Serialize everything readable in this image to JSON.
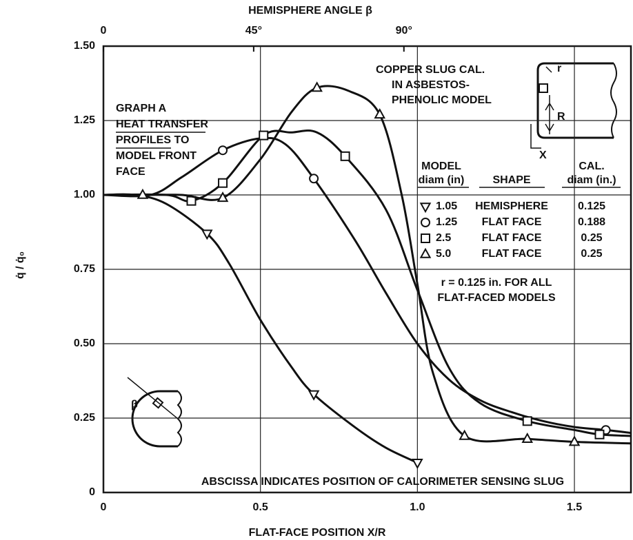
{
  "chart_data": {
    "type": "line",
    "title": "HEMISPHERE ANGLE β",
    "xlabel": "FLAT-FACE POSITION X/R",
    "ylabel": "q̇ / q̇₀",
    "xlim": [
      0,
      1.68
    ],
    "xticks": [
      0,
      0.5,
      {
        "value": 1.0,
        "label": "1.0"
      },
      1.5
    ],
    "ylim": [
      0,
      1.5
    ],
    "yticks": [
      0,
      {
        "value": 0.25,
        "label": "0.25"
      },
      {
        "value": 0.5,
        "label": "0.50"
      },
      {
        "value": 0.75,
        "label": "0.75"
      },
      {
        "value": 1.0,
        "label": "1.00"
      },
      {
        "value": 1.25,
        "label": "1.25"
      },
      {
        "value": 1.5,
        "label": "1.50"
      }
    ],
    "x2lim": [
      0,
      158
    ],
    "x2ticks": [
      0,
      {
        "value": 45,
        "label": "45°"
      },
      {
        "value": 90,
        "label": "90°"
      }
    ],
    "grid": true,
    "color": "#111111",
    "legend_headers": [
      [
        "MODEL",
        "diam (in)"
      ],
      [
        "SHAPE"
      ],
      [
        "CAL.",
        "diam (in.)"
      ]
    ],
    "series": [
      {
        "name": "1.05",
        "shape": "HEMISPHERE",
        "cal_diam": "0.125",
        "marker": "triangle-down",
        "x": [
          0,
          0.1,
          0.2,
          0.33,
          0.4,
          0.5,
          0.6,
          0.67,
          0.8,
          0.9,
          1.0
        ],
        "values": [
          1.0,
          1.0,
          0.97,
          0.87,
          0.77,
          0.58,
          0.42,
          0.33,
          0.22,
          0.15,
          0.1
        ],
        "markers": {
          "x": [
            0.33,
            0.67,
            1.0
          ],
          "values": [
            0.87,
            0.33,
            0.1
          ]
        }
      },
      {
        "name": "1.25",
        "shape": "FLAT FACE",
        "cal_diam": "0.188",
        "marker": "circle",
        "x": [
          0,
          0.15,
          0.25,
          0.38,
          0.5,
          0.58,
          0.67,
          0.8,
          0.9,
          1.0,
          1.1,
          1.2,
          1.3,
          1.4,
          1.5,
          1.6,
          1.68
        ],
        "values": [
          1.0,
          1.0,
          1.06,
          1.15,
          1.19,
          1.17,
          1.055,
          0.85,
          0.67,
          0.5,
          0.38,
          0.31,
          0.27,
          0.24,
          0.22,
          0.21,
          0.2
        ],
        "markers": {
          "x": [
            0.38,
            0.67,
            1.6
          ],
          "values": [
            1.15,
            1.055,
            0.21
          ]
        }
      },
      {
        "name": "2.5",
        "shape": "FLAT FACE",
        "cal_diam": "0.25",
        "marker": "square",
        "x": [
          0,
          0.2,
          0.28,
          0.38,
          0.51,
          0.6,
          0.68,
          0.77,
          0.9,
          1.0,
          1.1,
          1.2,
          1.35,
          1.5,
          1.58,
          1.68
        ],
        "values": [
          1.0,
          1.0,
          0.98,
          1.04,
          1.2,
          1.21,
          1.21,
          1.13,
          0.95,
          0.68,
          0.42,
          0.3,
          0.24,
          0.21,
          0.195,
          0.19
        ],
        "markers": {
          "x": [
            0.28,
            0.38,
            0.51,
            0.77,
            1.35,
            1.58
          ],
          "values": [
            0.98,
            1.04,
            1.2,
            1.13,
            0.24,
            0.195
          ]
        }
      },
      {
        "name": "5.0",
        "shape": "FLAT FACE",
        "cal_diam": "0.25",
        "marker": "triangle-up",
        "x": [
          0,
          0.125,
          0.25,
          0.38,
          0.5,
          0.6,
          0.68,
          0.78,
          0.88,
          0.95,
          1.0,
          1.05,
          1.15,
          1.35,
          1.5,
          1.68
        ],
        "values": [
          1.0,
          1.0,
          1.0,
          0.99,
          1.12,
          1.28,
          1.36,
          1.35,
          1.27,
          1.0,
          0.7,
          0.4,
          0.19,
          0.18,
          0.17,
          0.165
        ],
        "markers": {
          "x": [
            0.125,
            0.38,
            0.68,
            0.88,
            1.15,
            1.35,
            1.5
          ],
          "values": [
            1.0,
            0.99,
            1.36,
            1.27,
            0.19,
            0.18,
            0.17
          ]
        }
      }
    ],
    "annotations": {
      "graph": [
        "GRAPH A",
        "HEAT TRANSFER",
        "PROFILES TO",
        "MODEL FRONT",
        "FACE"
      ],
      "model": [
        "COPPER SLUG CAL.",
        "IN ASBESTOS-",
        "PHENOLIC MODEL"
      ],
      "note": [
        "r = 0.125 in. FOR ALL",
        "FLAT-FACED MODELS"
      ],
      "abscissa": "ABSCISSA INDICATES POSITION OF CALORIMETER SENSING SLUG",
      "inset_r": "r",
      "inset_R": "R",
      "inset_X": "X",
      "inset_beta": "β"
    }
  }
}
